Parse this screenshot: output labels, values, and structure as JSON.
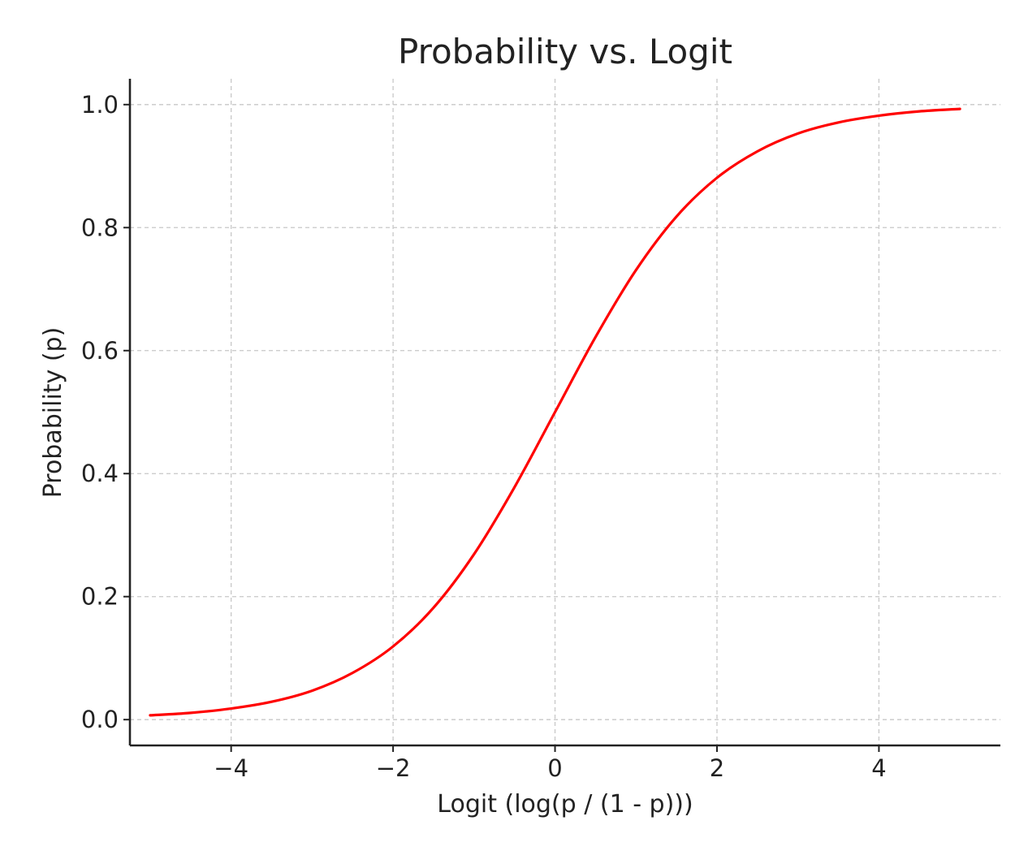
{
  "chart_data": {
    "type": "line",
    "title": "Probability vs. Logit",
    "xlabel": "Logit (log(p / (1 - p)))",
    "ylabel": "Probability (p)",
    "xlim": [
      -5.25,
      5.5
    ],
    "ylim": [
      -0.042,
      1.042
    ],
    "x_ticks": [
      -4,
      -2,
      0,
      2,
      4
    ],
    "x_tick_labels": [
      "−4",
      "−2",
      "0",
      "2",
      "4"
    ],
    "y_ticks": [
      0.0,
      0.2,
      0.4,
      0.6,
      0.8,
      1.0
    ],
    "y_tick_labels": [
      "0.0",
      "0.2",
      "0.4",
      "0.6",
      "0.8",
      "1.0"
    ],
    "grid": true,
    "series": [
      {
        "color": "#ff0000",
        "x": [
          -5,
          -4.5,
          -4,
          -3.5,
          -3,
          -2.5,
          -2,
          -1.5,
          -1,
          -0.5,
          0,
          0.5,
          1,
          1.5,
          2,
          2.5,
          3,
          3.5,
          4,
          4.5,
          5
        ],
        "y": [
          0.007,
          0.011,
          0.018,
          0.029,
          0.047,
          0.076,
          0.119,
          0.182,
          0.269,
          0.378,
          0.5,
          0.622,
          0.731,
          0.818,
          0.881,
          0.924,
          0.953,
          0.971,
          0.982,
          0.989,
          0.993
        ]
      }
    ]
  }
}
